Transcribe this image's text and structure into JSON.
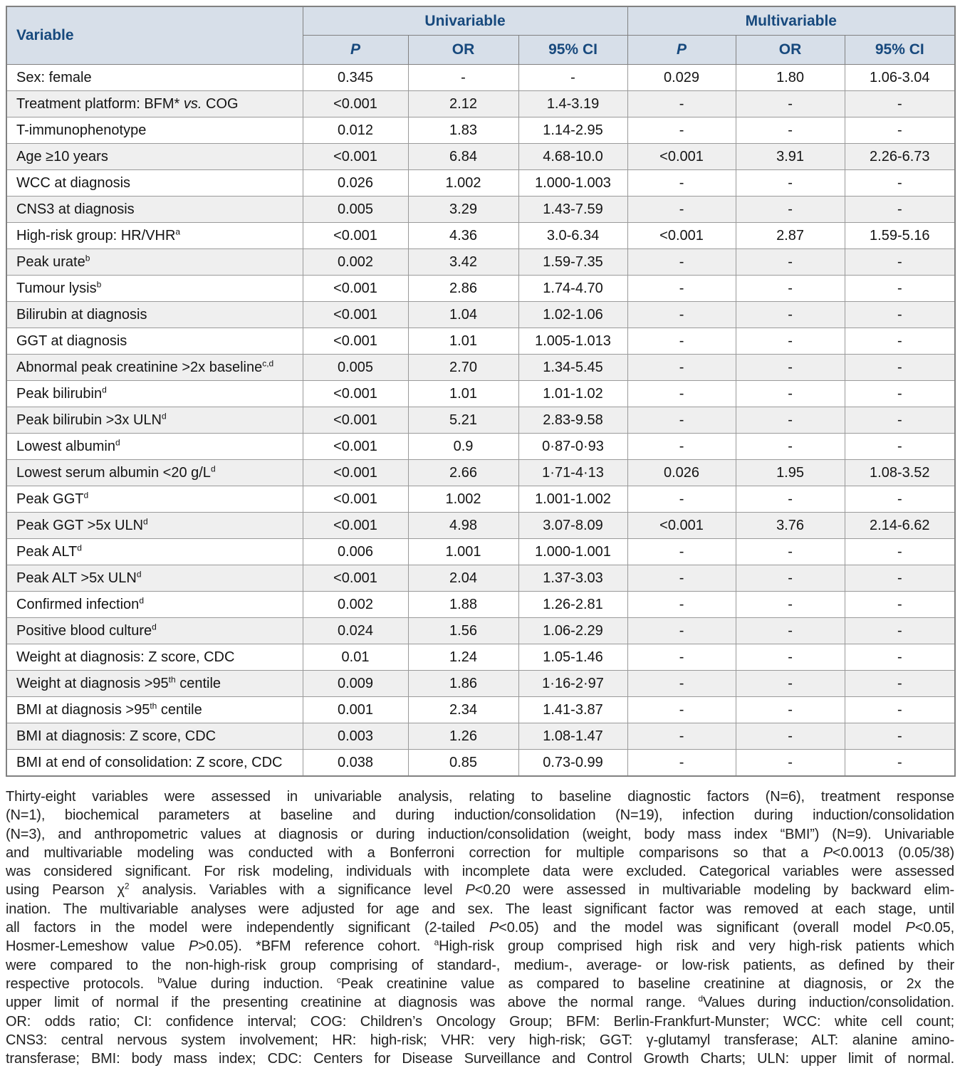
{
  "colors": {
    "header_bg": "#d7dfe9",
    "header_text": "#17497d",
    "row_alt_bg": "#efefef",
    "border": "#9a9a9a",
    "border_dark": "#818181"
  },
  "table": {
    "variable_header": "Variable",
    "groups": [
      "Univariable",
      "Multivariable"
    ],
    "sub_headers": [
      "P",
      "OR",
      "95% CI",
      "P",
      "OR",
      "95% CI"
    ],
    "rows": [
      {
        "variable": "Sex: female",
        "values": [
          "0.345",
          "-",
          "-",
          "0.029",
          "1.80",
          "1.06-3.04"
        ]
      },
      {
        "variable": "Treatment platform: BFM* ~{vs.} COG",
        "values": [
          "<0.001",
          "2.12",
          "1.4-3.19",
          "-",
          "-",
          "-"
        ]
      },
      {
        "variable": "T-immunophenotype",
        "values": [
          "0.012",
          "1.83",
          "1.14-2.95",
          "-",
          "-",
          "-"
        ]
      },
      {
        "variable": "Age ≥10 years",
        "values": [
          "<0.001",
          "6.84",
          "4.68-10.0",
          "<0.001",
          "3.91",
          "2.26-6.73"
        ]
      },
      {
        "variable": "WCC at diagnosis",
        "values": [
          "0.026",
          "1.002",
          "1.000-1.003",
          "-",
          "-",
          "-"
        ]
      },
      {
        "variable": "CNS3 at diagnosis",
        "values": [
          "0.005",
          "3.29",
          "1.43-7.59",
          "-",
          "-",
          "-"
        ]
      },
      {
        "variable": "High-risk group: HR/VHR^{a}",
        "values": [
          "<0.001",
          "4.36",
          "3.0-6.34",
          "<0.001",
          "2.87",
          "1.59-5.16"
        ]
      },
      {
        "variable": "Peak urate^{b}",
        "values": [
          "0.002",
          "3.42",
          "1.59-7.35",
          "-",
          "-",
          "-"
        ]
      },
      {
        "variable": "Tumour lysis^{b}",
        "values": [
          "<0.001",
          "2.86",
          "1.74-4.70",
          "-",
          "-",
          "-"
        ]
      },
      {
        "variable": "Bilirubin at diagnosis",
        "values": [
          "<0.001",
          "1.04",
          "1.02-1.06",
          "-",
          "-",
          "-"
        ]
      },
      {
        "variable": "GGT at diagnosis",
        "values": [
          "<0.001",
          "1.01",
          "1.005-1.013",
          "-",
          "-",
          "-"
        ]
      },
      {
        "variable": "Abnormal peak creatinine >2x baseline^{c,d}",
        "values": [
          "0.005",
          "2.70",
          "1.34-5.45",
          "-",
          "-",
          "-"
        ]
      },
      {
        "variable": "Peak bilirubin^{d}",
        "values": [
          "<0.001",
          "1.01",
          "1.01-1.02",
          "-",
          "-",
          "-"
        ]
      },
      {
        "variable": "Peak bilirubin >3x ULN^{d}",
        "values": [
          "<0.001",
          "5.21",
          "2.83-9.58",
          "-",
          "-",
          "-"
        ]
      },
      {
        "variable": "Lowest albumin^{d}",
        "values": [
          "<0.001",
          "0.9",
          "0·87-0·93",
          "-",
          "-",
          "-"
        ]
      },
      {
        "variable": "Lowest serum albumin <20 g/L^{d}",
        "values": [
          "<0.001",
          "2.66",
          "1·71-4·13",
          "0.026",
          "1.95",
          "1.08-3.52"
        ]
      },
      {
        "variable": "Peak GGT^{d}",
        "values": [
          "<0.001",
          "1.002",
          "1.001-1.002",
          "-",
          "-",
          "-"
        ]
      },
      {
        "variable": "Peak GGT >5x ULN^{d}",
        "values": [
          "<0.001",
          "4.98",
          "3.07-8.09",
          "<0.001",
          "3.76",
          "2.14-6.62"
        ]
      },
      {
        "variable": "Peak ALT^{d}",
        "values": [
          "0.006",
          "1.001",
          "1.000-1.001",
          "-",
          "-",
          "-"
        ]
      },
      {
        "variable": "Peak ALT >5x ULN^{d}",
        "values": [
          "<0.001",
          "2.04",
          "1.37-3.03",
          "-",
          "-",
          "-"
        ]
      },
      {
        "variable": "Confirmed infection^{d}",
        "values": [
          "0.002",
          "1.88",
          "1.26-2.81",
          "-",
          "-",
          "-"
        ]
      },
      {
        "variable": "Positive blood culture^{d}",
        "values": [
          "0.024",
          "1.56",
          "1.06-2.29",
          "-",
          "-",
          "-"
        ]
      },
      {
        "variable": "Weight at diagnosis: Z score, CDC",
        "values": [
          "0.01",
          "1.24",
          "1.05-1.46",
          "-",
          "-",
          "-"
        ]
      },
      {
        "variable": "Weight at diagnosis >95^{th} centile",
        "values": [
          "0.009",
          "1.86",
          "1·16-2·97",
          "-",
          "-",
          "-"
        ]
      },
      {
        "variable": "BMI at diagnosis >95^{th} centile",
        "values": [
          "0.001",
          "2.34",
          "1.41-3.87",
          "-",
          "-",
          "-"
        ]
      },
      {
        "variable": "BMI at diagnosis: Z score, CDC",
        "values": [
          "0.003",
          "1.26",
          "1.08-1.47",
          "-",
          "-",
          "-"
        ]
      },
      {
        "variable": "BMI at end of consolidation: Z score, CDC",
        "values": [
          "0.038",
          "0.85",
          "0.73-0.99",
          "-",
          "-",
          "-"
        ]
      }
    ]
  },
  "footnote": {
    "lines": [
      "Thirty-eight variables were assessed in univariable analysis, relating to baseline diagnostic factors (N=6), treatment response",
      "(N=1), biochemical parameters at baseline and during induction/consolidation (N=19), infection during induction/consolidation",
      "(N=3), and anthropometric values at diagnosis or during induction/consolidation (weight, body mass index “BMI”) (N=9). Univariable",
      "and multivariable modeling was conducted with a Bonferroni correction for multiple comparisons so that a ~{P}<0.0013 (0.05/38)",
      "was considered significant. For risk modeling, individuals with incomplete data were excluded. Categorical variables were assessed",
      "using Pearson χ^{2} analysis. Variables with a significance level ~{P}<0.20 were assessed in multivariable modeling by backward elim-",
      "ination. The multivariable analyses were adjusted for age and sex. The least significant factor was removed at each stage, until",
      "all factors in the model were independently significant (2-tailed ~{P}<0.05) and the model was significant (overall model ~{P}<0.05,",
      "Hosmer-Lemeshow value ~{P}>0.05). *BFM reference cohort. ^{a}High-risk group comprised high risk and very high-risk patients which",
      "were compared to the non-high-risk group comprising of standard-, medium-, average- or low-risk patients, as defined by their",
      "respective protocols. ^{b}Value during induction. ^{c}Peak creatinine value as compared to baseline creatinine at diagnosis, or 2x the",
      "upper limit of normal if the presenting creatinine at diagnosis was above the normal range. ^{d}Values during induction/consolidation.",
      "OR: odds ratio; CI: confidence interval; COG: Children’s Oncology Group; BFM: Berlin-Frankfurt-Munster; WCC: white cell count;",
      "CNS3: central nervous system involvement; HR: high-risk; VHR: very high-risk; GGT: γ-glutamyl transferase; ALT: alanine amino-",
      "transferase; BMI: body mass index; CDC: Centers for Disease Surveillance and Control Growth Charts; ULN: upper limit of normal."
    ]
  }
}
